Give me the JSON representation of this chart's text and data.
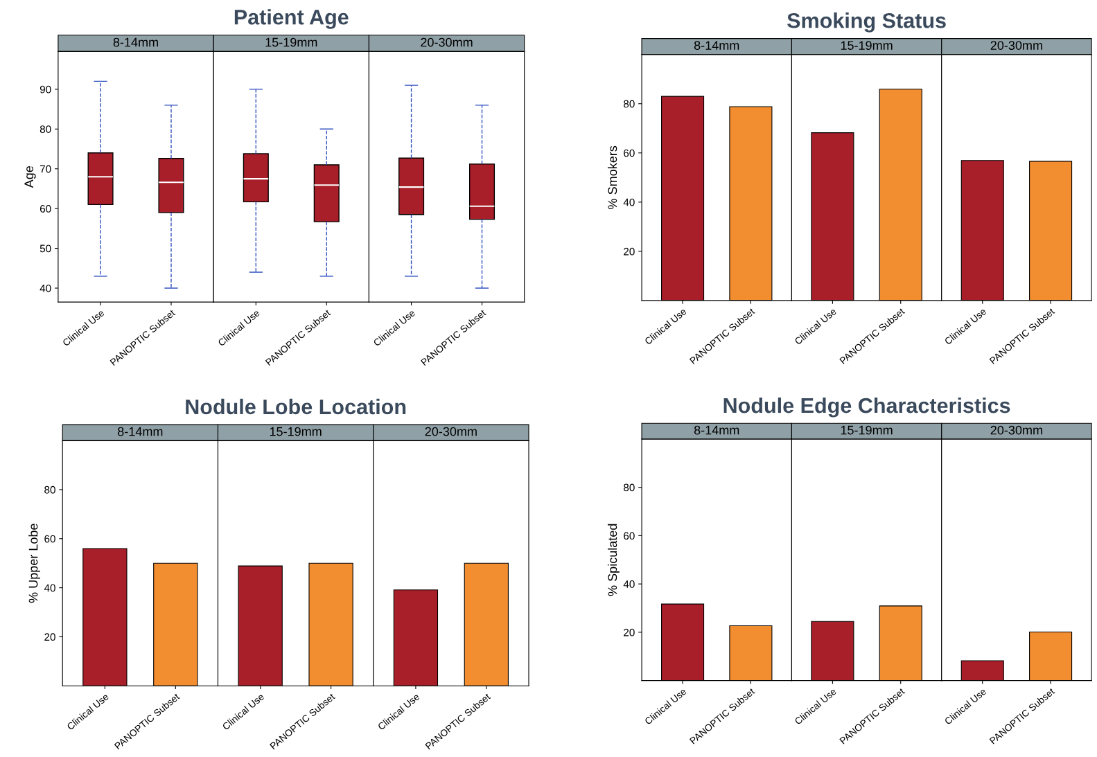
{
  "chart_data": [
    {
      "type": "box",
      "subtitle": "8-14mm",
      "ylabel": "Age",
      "categories": [
        "Clinical Use",
        "PANOPTIC Subset"
      ],
      "color": "#a91f29",
      "boxes": [
        {
          "low": 43,
          "q1": 61,
          "median": 68,
          "q3": 74,
          "high": 92
        },
        {
          "low": 40,
          "q1": 59,
          "median": 66.6,
          "q3": 72.6,
          "high": 86
        }
      ],
      "ylim": [
        36.5,
        99.5
      ],
      "yticks": [
        40,
        50,
        60,
        70,
        80,
        90
      ]
    },
    {
      "type": "box",
      "title": "Patient Age",
      "subtitle": "15-19mm",
      "categories": [
        "Clinical Use",
        "PANOPTIC Subset"
      ],
      "color": "#a91f29",
      "boxes": [
        {
          "low": 44,
          "q1": 61.7,
          "median": 67.5,
          "q3": 73.8,
          "high": 90
        },
        {
          "low": 43,
          "q1": 56.7,
          "median": 65.9,
          "q3": 71,
          "high": 80
        }
      ],
      "ylim": [
        36.5,
        99.5
      ],
      "yticks": [
        40,
        50,
        60,
        70,
        80,
        90
      ],
      "tick_labels": "x"
    },
    {
      "type": "box",
      "subtitle": "20-30mm",
      "categories": [
        "Clinical Use",
        "PANOPTIC Subset"
      ],
      "color": "#a91f29",
      "boxes": [
        {
          "low": 43,
          "q1": 58.5,
          "median": 65.4,
          "q3": 72.7,
          "high": 91
        },
        {
          "low": 40,
          "q1": 57.3,
          "median": 60.6,
          "q3": 71.2,
          "high": 86
        }
      ],
      "ylim": [
        36.5,
        99.5
      ],
      "yticks": [
        40,
        50,
        60,
        70,
        80,
        90
      ],
      "tick_labels": "x"
    },
    {
      "type": "bar",
      "subtitle": "8-14mm",
      "ylabel": "% Smokers",
      "categories": [
        "Clinical Use",
        "PANOPTIC Subset"
      ],
      "values": [
        83,
        78.8
      ],
      "colors": [
        "#a91f29",
        "#f28e30"
      ],
      "ylim": [
        0,
        100
      ],
      "yticks": [
        20,
        40,
        60,
        80
      ]
    },
    {
      "type": "bar",
      "title": "Smoking Status",
      "subtitle": "15-19mm",
      "categories": [
        "Clinical Use",
        "PANOPTIC Subset"
      ],
      "values": [
        68.2,
        85.9
      ],
      "colors": [
        "#a91f29",
        "#f28e30"
      ],
      "ylim": [
        0,
        100
      ],
      "yticks": [
        20,
        40,
        60,
        80
      ],
      "tick_labels": "x"
    },
    {
      "type": "bar",
      "subtitle": "20-30mm",
      "categories": [
        "Clinical Use",
        "PANOPTIC Subset"
      ],
      "values": [
        56.9,
        56.6
      ],
      "colors": [
        "#a91f29",
        "#f28e30"
      ],
      "ylim": [
        0,
        100
      ],
      "yticks": [
        20,
        40,
        60,
        80
      ],
      "tick_labels": "x"
    },
    {
      "type": "bar",
      "subtitle": "8-14mm",
      "ylabel": "% Upper Lobe",
      "categories": [
        "Clinical Use",
        "PANOPTIC Subset"
      ],
      "values": [
        56,
        50
      ],
      "colors": [
        "#a91f29",
        "#f28e30"
      ],
      "ylim": [
        0,
        100
      ],
      "yticks": [
        20,
        40,
        60,
        80
      ]
    },
    {
      "type": "bar",
      "title": "Nodule Lobe Location",
      "subtitle": "15-19mm",
      "categories": [
        "Clinical Use",
        "PANOPTIC Subset"
      ],
      "values": [
        48.9,
        50
      ],
      "colors": [
        "#a91f29",
        "#f28e30"
      ],
      "ylim": [
        0,
        100
      ],
      "yticks": [
        20,
        40,
        60,
        80
      ],
      "tick_labels": "x"
    },
    {
      "type": "bar",
      "subtitle": "20-30mm",
      "categories": [
        "Clinical Use",
        "PANOPTIC Subset"
      ],
      "values": [
        39.1,
        50
      ],
      "colors": [
        "#a91f29",
        "#f28e30"
      ],
      "ylim": [
        0,
        100
      ],
      "yticks": [
        20,
        40,
        60,
        80
      ],
      "tick_labels": "x"
    },
    {
      "type": "bar",
      "subtitle": "8-14mm",
      "ylabel": "% Spiculated",
      "categories": [
        "Clinical Use",
        "PANOPTIC Subset"
      ],
      "values": [
        31.7,
        22.7
      ],
      "colors": [
        "#a91f29",
        "#f28e30"
      ],
      "ylim": [
        0,
        100
      ],
      "yticks": [
        20,
        40,
        60,
        80
      ]
    },
    {
      "type": "bar",
      "title": "Nodule Edge Characteristics",
      "subtitle": "15-19mm",
      "categories": [
        "Clinical Use",
        "PANOPTIC Subset"
      ],
      "values": [
        24.5,
        30.9
      ],
      "colors": [
        "#a91f29",
        "#f28e30"
      ],
      "ylim": [
        0,
        100
      ],
      "yticks": [
        20,
        40,
        60,
        80
      ],
      "tick_labels": "x"
    },
    {
      "type": "bar",
      "subtitle": "20-30mm",
      "categories": [
        "Clinical Use",
        "PANOPTIC Subset"
      ],
      "values": [
        8.2,
        20.1
      ],
      "colors": [
        "#a91f29",
        "#f28e30"
      ],
      "ylim": [
        0,
        100
      ],
      "yticks": [
        20,
        40,
        60,
        80
      ],
      "tick_labels": "x"
    }
  ]
}
